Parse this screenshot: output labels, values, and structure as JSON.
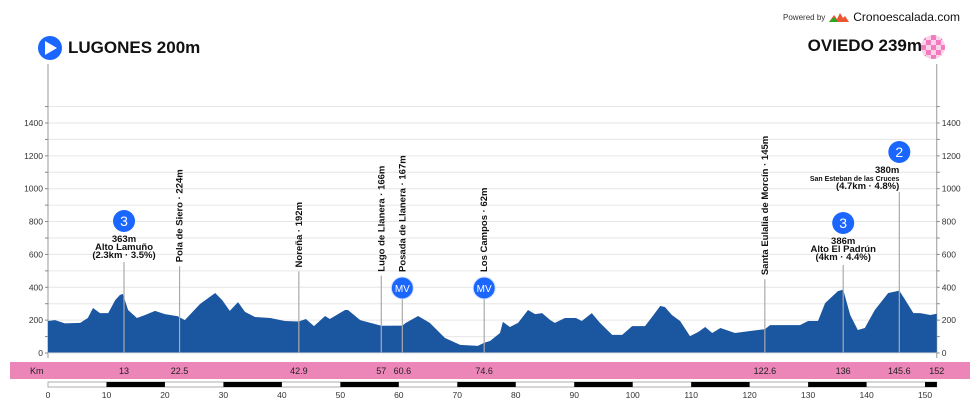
{
  "start": {
    "name": "LUGONES 200m",
    "icon": "play-arrow-icon",
    "color": "#1a66ff"
  },
  "finish": {
    "name": "OVIEDO 239m",
    "icon": "checkered-flag-icon",
    "color": "#f080c0"
  },
  "powered_by": "Powered by",
  "brand": "Cronoescalada.com",
  "colors": {
    "profile": "#1b56a0",
    "km_band": "#ec86b9",
    "badge": "#1a66ff"
  },
  "chart_data": {
    "type": "area",
    "xlabel": "Km",
    "xlim": [
      0,
      152
    ],
    "ylim": [
      0,
      1500
    ],
    "y_ticks": [
      0,
      200,
      400,
      600,
      800,
      1000,
      1200,
      1400
    ],
    "x_ticks": [
      0,
      10,
      20,
      30,
      40,
      50,
      60,
      70,
      80,
      90,
      100,
      110,
      120,
      130,
      140,
      150
    ],
    "grid": true,
    "profile": [
      [
        0,
        195
      ],
      [
        1.2,
        200
      ],
      [
        2.9,
        180
      ],
      [
        5.5,
        183
      ],
      [
        6.8,
        213
      ],
      [
        7.7,
        274
      ],
      [
        8.9,
        243
      ],
      [
        10.3,
        243
      ],
      [
        11.5,
        322
      ],
      [
        12.3,
        353
      ],
      [
        12.8,
        360
      ],
      [
        13.7,
        262
      ],
      [
        15.2,
        213
      ],
      [
        16.6,
        231
      ],
      [
        18.3,
        256
      ],
      [
        20,
        237
      ],
      [
        22.2,
        224
      ],
      [
        23.4,
        200
      ],
      [
        26,
        298
      ],
      [
        28.6,
        365
      ],
      [
        29.8,
        322
      ],
      [
        31.1,
        256
      ],
      [
        32.5,
        310
      ],
      [
        33.7,
        250
      ],
      [
        35.4,
        219
      ],
      [
        38,
        213
      ],
      [
        40.5,
        195
      ],
      [
        42.9,
        192
      ],
      [
        44.1,
        207
      ],
      [
        45.5,
        164
      ],
      [
        47.4,
        225
      ],
      [
        48.2,
        207
      ],
      [
        50.8,
        262
      ],
      [
        51.3,
        262
      ],
      [
        53.4,
        200
      ],
      [
        57,
        166
      ],
      [
        60.6,
        167
      ],
      [
        61.2,
        183
      ],
      [
        63.3,
        225
      ],
      [
        65.3,
        183
      ],
      [
        67.9,
        91
      ],
      [
        70.5,
        49
      ],
      [
        73.5,
        43
      ],
      [
        74.6,
        62
      ],
      [
        75.6,
        73
      ],
      [
        77.3,
        122
      ],
      [
        77.8,
        189
      ],
      [
        79,
        158
      ],
      [
        80.4,
        183
      ],
      [
        82.1,
        262
      ],
      [
        83.3,
        237
      ],
      [
        84.5,
        243
      ],
      [
        85.9,
        200
      ],
      [
        86.7,
        183
      ],
      [
        88.4,
        213
      ],
      [
        90.3,
        213
      ],
      [
        91.3,
        195
      ],
      [
        93,
        243
      ],
      [
        94.4,
        183
      ],
      [
        96.5,
        110
      ],
      [
        98.2,
        110
      ],
      [
        99.9,
        164
      ],
      [
        102.1,
        164
      ],
      [
        103.3,
        219
      ],
      [
        104.7,
        286
      ],
      [
        105.5,
        280
      ],
      [
        106.7,
        231
      ],
      [
        108.1,
        195
      ],
      [
        109.8,
        103
      ],
      [
        111.2,
        128
      ],
      [
        112.4,
        158
      ],
      [
        113.6,
        122
      ],
      [
        115,
        152
      ],
      [
        117.5,
        122
      ],
      [
        120.1,
        134
      ],
      [
        122.6,
        145
      ],
      [
        123.5,
        170
      ],
      [
        128.6,
        170
      ],
      [
        130,
        195
      ],
      [
        131.7,
        195
      ],
      [
        132.9,
        304
      ],
      [
        135.1,
        377
      ],
      [
        136,
        386
      ],
      [
        137.2,
        231
      ],
      [
        138.5,
        140
      ],
      [
        139.7,
        152
      ],
      [
        141.4,
        262
      ],
      [
        143.7,
        365
      ],
      [
        145.6,
        380
      ],
      [
        146.6,
        323
      ],
      [
        148,
        243
      ],
      [
        149.2,
        243
      ],
      [
        150.9,
        231
      ],
      [
        152,
        239
      ]
    ],
    "km_marks": [
      "13",
      "22.5",
      "42.9",
      "57",
      "60.6",
      "74.6",
      "122.6",
      "136",
      "145.6",
      "152"
    ],
    "waypoints": [
      {
        "km": 22.5,
        "label": "Pola de Siero · 224m"
      },
      {
        "km": 42.9,
        "label": "Noreña · 192m"
      },
      {
        "km": 57,
        "label": "Lugo de Llanera · 166m"
      },
      {
        "km": 60.6,
        "label": "Posada de Llanera · 167m",
        "badge": "MV"
      },
      {
        "km": 74.6,
        "label": "Los Campos · 62m",
        "badge": "MV"
      },
      {
        "km": 122.6,
        "label": "Santa Eulalia de Morcín · 145m"
      }
    ],
    "climbs": [
      {
        "km": 13,
        "category": "3",
        "altitude": "363m",
        "name": "Alto Lamuño",
        "detail": "(2.3km · 3.5%)"
      },
      {
        "km": 136,
        "category": "3",
        "altitude": "386m",
        "name": "Alto El Padrún",
        "detail": "(4km · 4.4%)"
      },
      {
        "km": 145.6,
        "category": "2",
        "altitude": "380m",
        "name": "San Esteban de las Cruces",
        "detail": "(4.7km · 4.8%)",
        "small_name": true
      }
    ]
  }
}
